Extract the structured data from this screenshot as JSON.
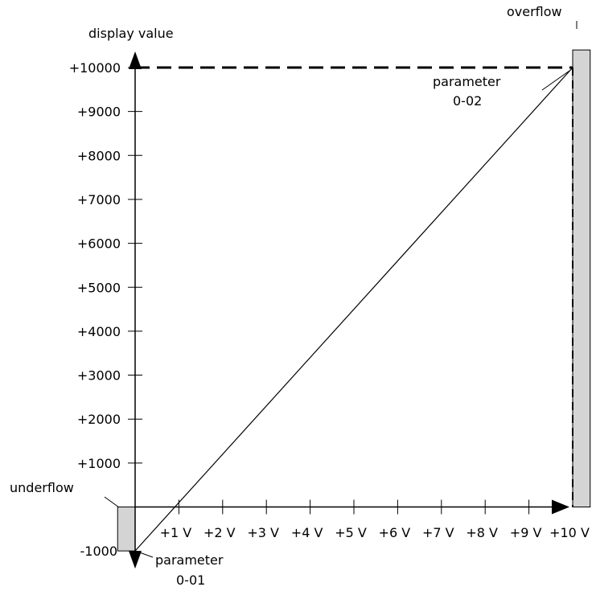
{
  "chart_data": {
    "type": "line",
    "ylabel": "display value",
    "x_ticks": [
      {
        "value": 1,
        "label": "+1 V"
      },
      {
        "value": 2,
        "label": "+2 V"
      },
      {
        "value": 3,
        "label": "+3 V"
      },
      {
        "value": 4,
        "label": "+4 V"
      },
      {
        "value": 5,
        "label": "+5 V"
      },
      {
        "value": 6,
        "label": "+6 V"
      },
      {
        "value": 7,
        "label": "+7 V"
      },
      {
        "value": 8,
        "label": "+8 V"
      },
      {
        "value": 9,
        "label": "+9 V"
      },
      {
        "value": 10,
        "label": "+10 V"
      }
    ],
    "y_ticks": [
      {
        "value": -1000,
        "label": "-1000"
      },
      {
        "value": 1000,
        "label": "+1000"
      },
      {
        "value": 2000,
        "label": "+2000"
      },
      {
        "value": 3000,
        "label": "+3000"
      },
      {
        "value": 4000,
        "label": "+4000"
      },
      {
        "value": 5000,
        "label": "+5000"
      },
      {
        "value": 6000,
        "label": "+6000"
      },
      {
        "value": 7000,
        "label": "+7000"
      },
      {
        "value": 8000,
        "label": "+8000"
      },
      {
        "value": 9000,
        "label": "+9000"
      },
      {
        "value": 10000,
        "label": "+10000"
      }
    ],
    "xlim": [
      0,
      10
    ],
    "ylim": [
      -1000,
      10000
    ],
    "series": [
      {
        "x": [
          0,
          10
        ],
        "y": [
          -1000,
          10000
        ]
      }
    ],
    "underflow_band": {
      "x": [
        -0.4,
        0
      ],
      "y": [
        -1000,
        0
      ]
    },
    "overflow_band": {
      "x": [
        10,
        10.4
      ],
      "y": [
        0,
        10400
      ]
    },
    "reference_line": {
      "y": 10000,
      "x": [
        0,
        10
      ],
      "style": "dashed"
    },
    "annotations": {
      "overflow": "overflow",
      "underflow": "underflow",
      "param_top_line1": "parameter",
      "param_top_line2": "0-02",
      "param_bottom_line1": "parameter",
      "param_bottom_line2": "0-01"
    },
    "grid": false,
    "colors": {
      "band_fill": "#d4d4d4",
      "ink": "#000000"
    }
  }
}
